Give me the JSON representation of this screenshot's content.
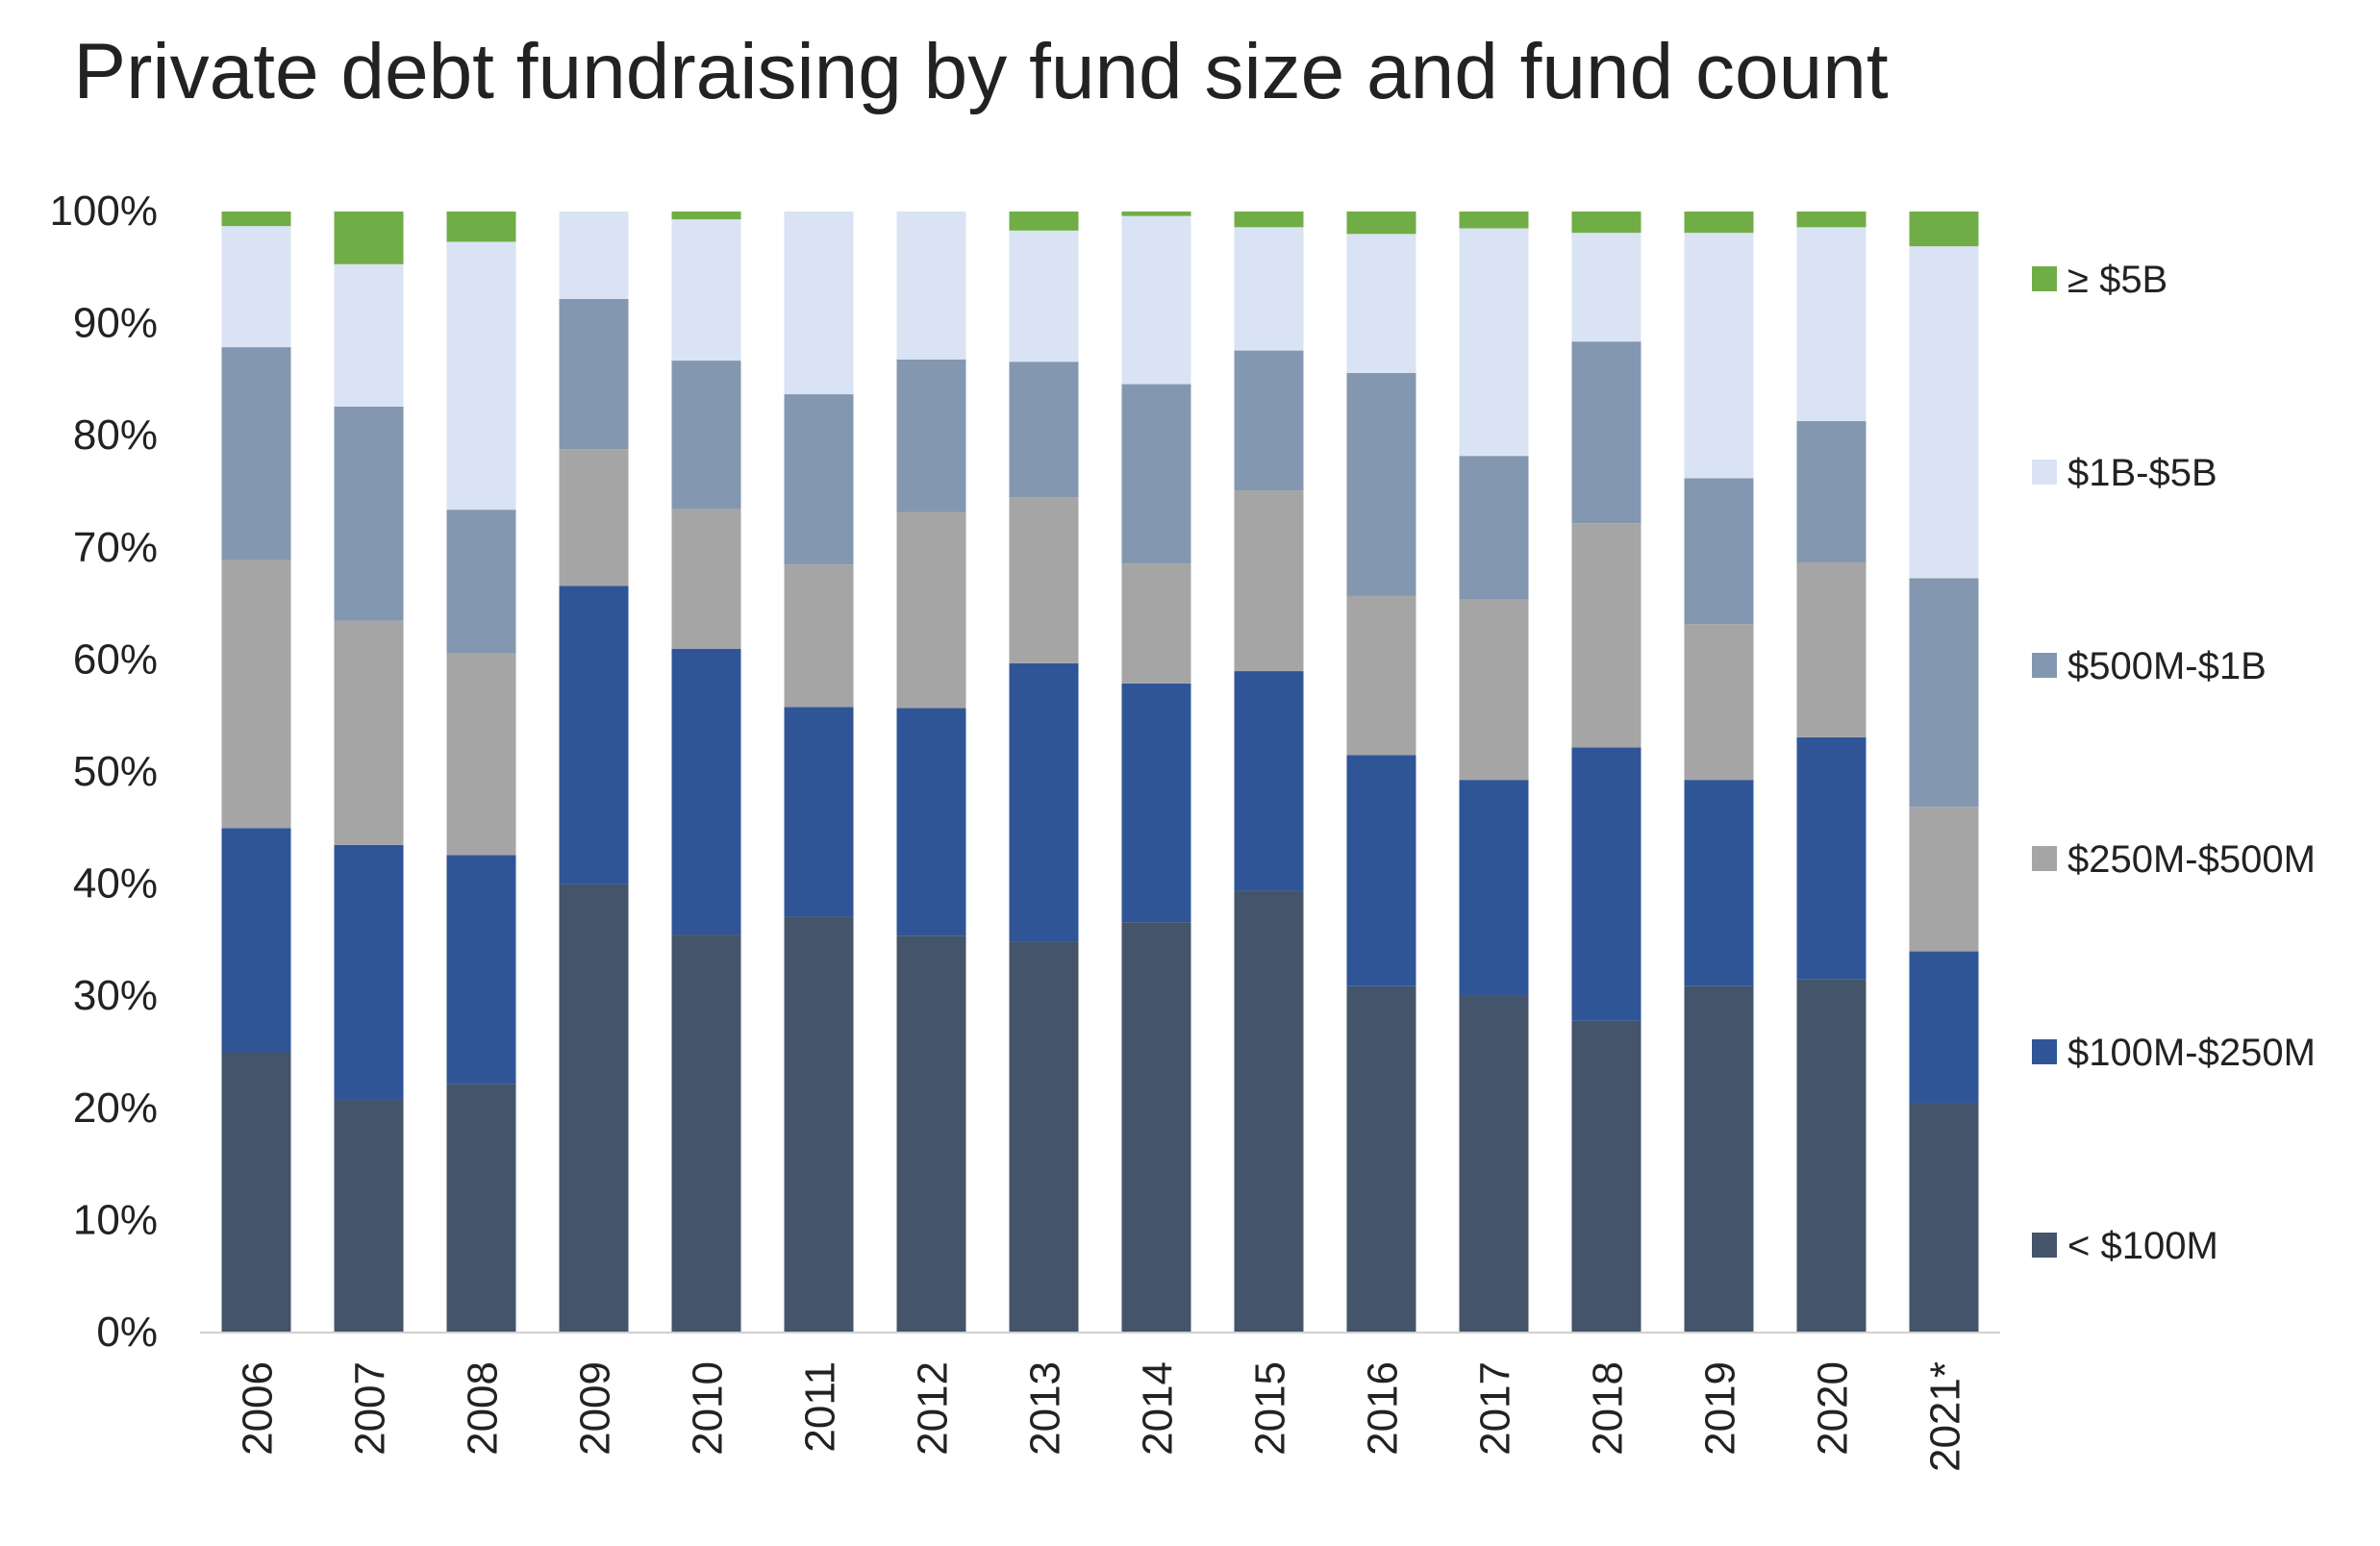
{
  "chart_data": {
    "type": "bar",
    "stacked": true,
    "title": "Private debt fundraising by fund size and fund count",
    "xlabel": "",
    "ylabel": "",
    "ylim": [
      0,
      100
    ],
    "y_ticks": [
      "0%",
      "10%",
      "20%",
      "30%",
      "40%",
      "50%",
      "60%",
      "70%",
      "80%",
      "90%",
      "100%"
    ],
    "y_tick_values": [
      0,
      10,
      20,
      30,
      40,
      50,
      60,
      70,
      80,
      90,
      100
    ],
    "grid": false,
    "legend_position": "right",
    "categories": [
      "2006",
      "2007",
      "2008",
      "2009",
      "2010",
      "2011",
      "2012",
      "2013",
      "2014",
      "2015",
      "2016",
      "2017",
      "2018",
      "2019",
      "2020",
      "2021*"
    ],
    "series": [
      {
        "name": "< $100M",
        "color": "#44546a",
        "values": [
          25.0,
          20.8,
          22.2,
          40.0,
          35.5,
          37.1,
          35.4,
          34.9,
          36.6,
          39.4,
          30.9,
          30.1,
          27.8,
          30.9,
          31.5,
          20.5
        ]
      },
      {
        "name": "$100M-$250M",
        "color": "#2f5597",
        "values": [
          20.0,
          22.7,
          20.4,
          26.6,
          25.5,
          18.7,
          20.3,
          24.8,
          21.3,
          19.6,
          20.6,
          19.2,
          24.4,
          18.4,
          21.6,
          13.5
        ]
      },
      {
        "name": "$250M-$500M",
        "color": "#a5a5a5",
        "values": [
          23.9,
          20.0,
          18.0,
          12.2,
          12.5,
          12.7,
          17.5,
          14.8,
          10.7,
          16.1,
          14.2,
          16.1,
          20.0,
          13.9,
          15.6,
          12.9
        ]
      },
      {
        "name": "$500M-$1B",
        "color": "#8497b0",
        "values": [
          19.0,
          19.1,
          12.8,
          13.4,
          13.2,
          15.2,
          13.6,
          12.1,
          16.0,
          12.5,
          19.9,
          12.8,
          16.2,
          13.0,
          12.6,
          20.4
        ]
      },
      {
        "name": "$1B-$5B",
        "color": "#dae3f3",
        "values": [
          10.8,
          12.7,
          23.9,
          7.8,
          12.6,
          16.3,
          13.2,
          11.7,
          15.0,
          11.0,
          12.4,
          20.3,
          9.7,
          21.9,
          17.3,
          29.6
        ]
      },
      {
        "name": "≥ $5B",
        "color": "#70ad47",
        "values": [
          1.3,
          4.7,
          2.7,
          0.0,
          0.7,
          0.0,
          0.0,
          1.7,
          0.4,
          1.4,
          2.0,
          1.5,
          1.9,
          1.9,
          1.4,
          3.1
        ]
      }
    ]
  }
}
